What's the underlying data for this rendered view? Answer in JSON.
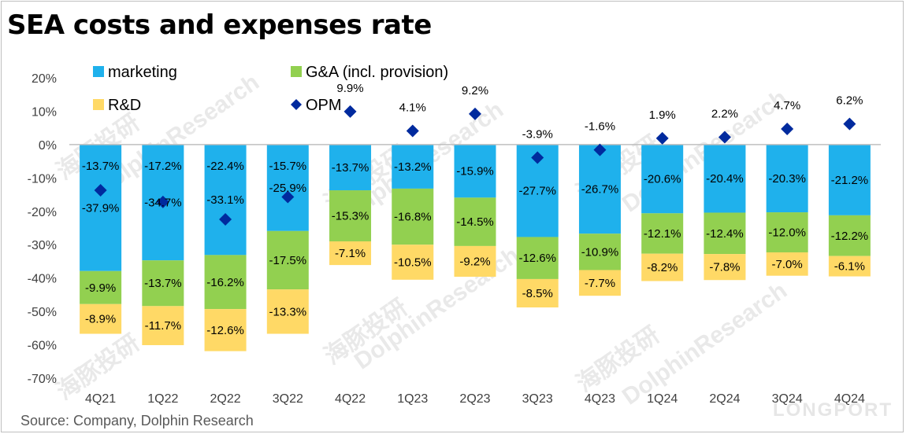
{
  "title": "SEA costs and expenses rate",
  "source": "Source: Company, Dolphin Research",
  "watermark": {
    "text": "DolphinResearch",
    "cn": "海豚投研",
    "brand": "LONGPORT"
  },
  "colors": {
    "marketing": "#1fb1ec",
    "ga": "#92d050",
    "rd": "#ffd966",
    "opm": "#002a9e",
    "axis": "#bfbfbf"
  },
  "chart_data": {
    "type": "bar",
    "stacked": true,
    "title": "SEA costs and expenses rate",
    "categories": [
      "4Q21",
      "1Q22",
      "2Q22",
      "3Q22",
      "4Q22",
      "1Q23",
      "2Q23",
      "3Q23",
      "4Q23",
      "1Q24",
      "2Q24",
      "3Q24",
      "4Q24"
    ],
    "ylim": [
      -70,
      20
    ],
    "yticks": [
      20,
      10,
      0,
      -10,
      -20,
      -30,
      -40,
      -50,
      -60,
      -70
    ],
    "ytick_labels": [
      "20%",
      "10%",
      "0%",
      "-10%",
      "-20%",
      "-30%",
      "-40%",
      "-50%",
      "-60%",
      "-70%"
    ],
    "legend_position": "top",
    "series": [
      {
        "name": "marketing",
        "key": "marketing",
        "type": "bar",
        "values": [
          -37.9,
          -34.7,
          -33.1,
          -25.9,
          -13.7,
          -13.2,
          -15.9,
          -27.7,
          -26.7,
          -20.6,
          -20.4,
          -20.3,
          -21.2
        ],
        "labels": [
          "-37.9%",
          "-34.7%",
          "-33.1%",
          "-25.9%",
          "-13.7%",
          "-13.2%",
          "-15.9%",
          "-27.7%",
          "-26.7%",
          "-20.6%",
          "-20.4%",
          "-20.3%",
          "-21.2%"
        ]
      },
      {
        "name": "G&A (incl. provision)",
        "key": "ga",
        "type": "bar",
        "values": [
          -9.9,
          -13.7,
          -16.2,
          -17.5,
          -15.3,
          -16.8,
          -14.5,
          -12.6,
          -10.9,
          -12.1,
          -12.4,
          -12.0,
          -12.2
        ],
        "labels": [
          "-9.9%",
          "-13.7%",
          "-16.2%",
          "-17.5%",
          "-15.3%",
          "-16.8%",
          "-14.5%",
          "-12.6%",
          "-10.9%",
          "-12.1%",
          "-12.4%",
          "-12.0%",
          "-12.2%"
        ]
      },
      {
        "name": "R&D",
        "key": "rd",
        "type": "bar",
        "values": [
          -8.9,
          -11.7,
          -12.6,
          -13.3,
          -7.1,
          -10.5,
          -9.2,
          -8.5,
          -7.7,
          -8.2,
          -7.8,
          -7.0,
          -6.1
        ],
        "labels": [
          "-8.9%",
          "-11.7%",
          "-12.6%",
          "-13.3%",
          "-7.1%",
          "-10.5%",
          "-9.2%",
          "-8.5%",
          "-7.7%",
          "-8.2%",
          "-7.8%",
          "-7.0%",
          "-6.1%"
        ]
      },
      {
        "name": "OPM",
        "key": "opm",
        "type": "scatter",
        "values": [
          -13.7,
          -17.2,
          -22.4,
          -15.7,
          9.9,
          4.1,
          9.2,
          -3.9,
          -1.6,
          1.9,
          2.2,
          4.7,
          6.2
        ],
        "labels": [
          "-13.7%",
          "-17.2%",
          "-22.4%",
          "-15.7%",
          "9.9%",
          "4.1%",
          "9.2%",
          "-3.9%",
          "-1.6%",
          "1.9%",
          "2.2%",
          "4.7%",
          "6.2%"
        ]
      }
    ]
  }
}
